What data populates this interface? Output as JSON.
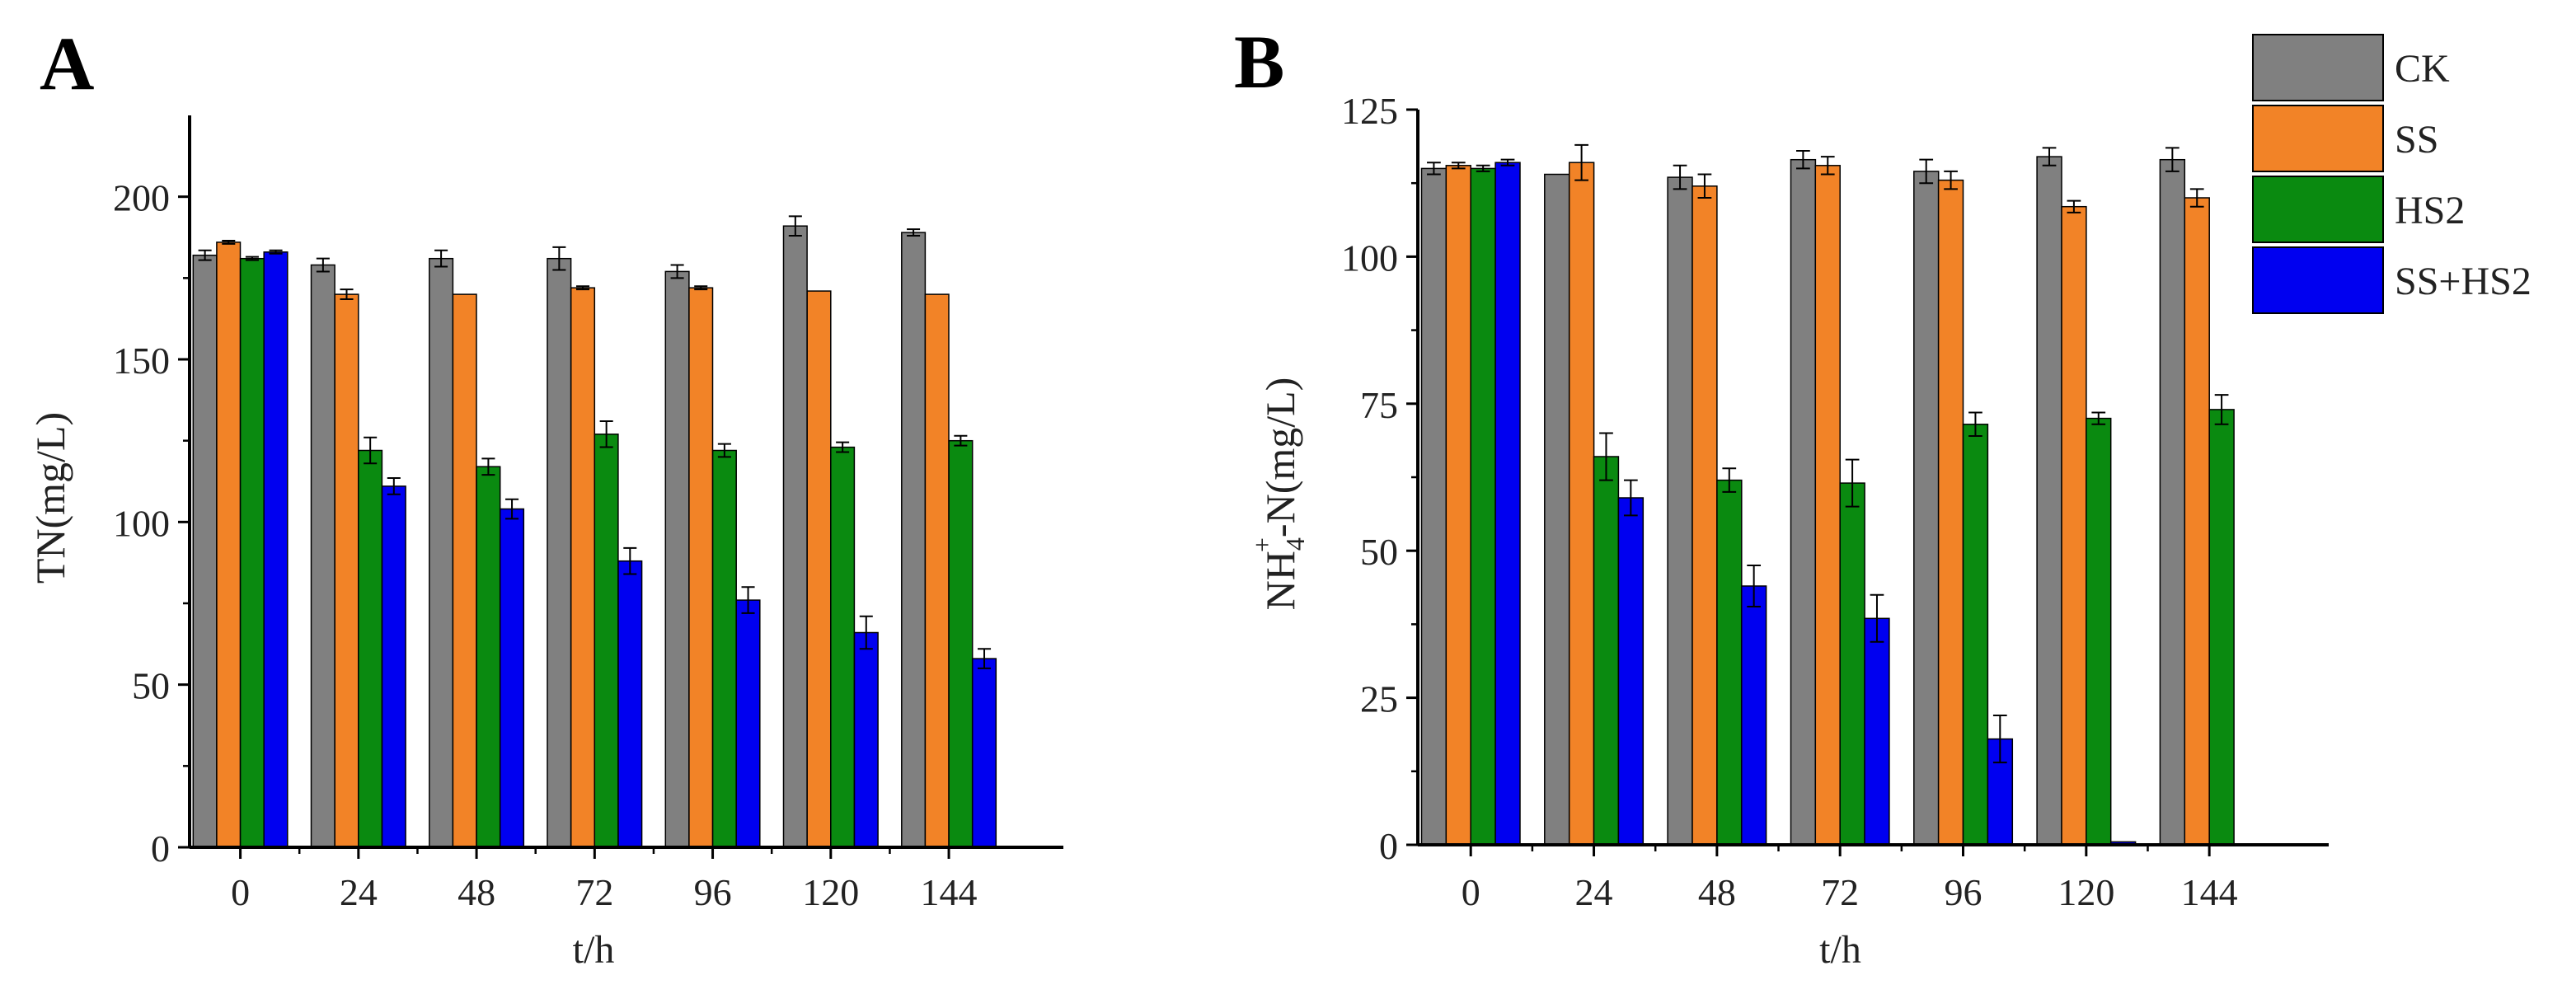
{
  "figure": {
    "panels": [
      "A",
      "B"
    ]
  },
  "legend": {
    "entries": [
      "CK",
      "SS",
      "HS2",
      "SS+HS2"
    ],
    "colors": [
      "#808080",
      "#F28327",
      "#0A8A10",
      "#0000F0"
    ]
  },
  "chart_data": [
    {
      "type": "bar",
      "panel_label": "A",
      "title": "",
      "xlabel": "t/h",
      "ylabel": "TN(mg/L)",
      "ylim": [
        0,
        225
      ],
      "yticks": [
        0,
        50,
        100,
        150,
        200
      ],
      "categories": [
        "0",
        "24",
        "48",
        "72",
        "96",
        "120",
        "144"
      ],
      "series": [
        {
          "name": "CK",
          "values": [
            182,
            179,
            181,
            181,
            177,
            191,
            189
          ],
          "errors": [
            1.5,
            2,
            2.5,
            3.5,
            2,
            3,
            1
          ]
        },
        {
          "name": "SS",
          "values": [
            186,
            170,
            170,
            172,
            172,
            171,
            170
          ],
          "errors": [
            0.5,
            1.5,
            0,
            0.5,
            0.5,
            0,
            0
          ]
        },
        {
          "name": "HS2",
          "values": [
            181,
            122,
            117,
            127,
            122,
            123,
            125
          ],
          "errors": [
            0.5,
            4,
            2.5,
            4,
            2,
            1.5,
            1.5
          ]
        },
        {
          "name": "SS+HS2",
          "values": [
            183,
            111,
            104,
            88,
            76,
            66,
            58
          ],
          "errors": [
            0.5,
            2.5,
            3,
            4,
            4,
            5,
            3
          ]
        }
      ]
    },
    {
      "type": "bar",
      "panel_label": "B",
      "title": "",
      "xlabel": "t/h",
      "ylabel": "NH4+-N(mg/L)",
      "ylabel_parts": {
        "base": "NH",
        "sub": "4",
        "sup": "+",
        "rest": "-N(mg/L)"
      },
      "ylim": [
        0,
        125
      ],
      "yticks": [
        0,
        25,
        50,
        75,
        100,
        125
      ],
      "categories": [
        "0",
        "24",
        "48",
        "72",
        "96",
        "120",
        "144"
      ],
      "series": [
        {
          "name": "CK",
          "values": [
            115,
            114,
            113.5,
            116.5,
            114.5,
            117,
            116.5
          ],
          "errors": [
            1,
            0,
            2,
            1.5,
            2,
            1.5,
            2
          ]
        },
        {
          "name": "SS",
          "values": [
            115.5,
            116,
            112,
            115.5,
            113,
            108.5,
            110
          ],
          "errors": [
            0.5,
            3,
            2,
            1.5,
            1.5,
            1,
            1.5
          ]
        },
        {
          "name": "HS2",
          "values": [
            115,
            66,
            62,
            61.5,
            71.5,
            72.5,
            74
          ],
          "errors": [
            0.5,
            4,
            2,
            4,
            2,
            1,
            2.5
          ]
        },
        {
          "name": "SS+HS2",
          "values": [
            116,
            59,
            44,
            38.5,
            18,
            0.5,
            0
          ],
          "errors": [
            0.5,
            3,
            3.5,
            4,
            4,
            0,
            0
          ]
        }
      ]
    }
  ]
}
